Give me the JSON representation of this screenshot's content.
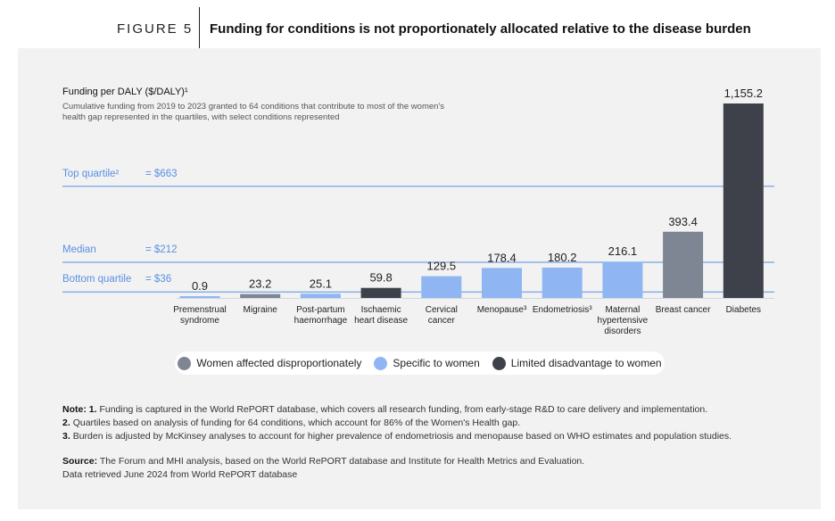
{
  "header": {
    "figure_label": "FIGURE 5",
    "title": "Funding for conditions is not proportionately allocated relative to the disease burden"
  },
  "chart_data": {
    "type": "bar",
    "title": "Funding per DALY ($/DALY)¹",
    "subtitle": "Cumulative funding from 2019 to 2023 granted to 64 conditions that contribute to most of the women's health gap represented in the quartiles, with select conditions represented",
    "categories": [
      "Premenstrual syndrome",
      "Migraine",
      "Post-partum haemorrhage",
      "Ischaemic heart disease",
      "Cervical cancer",
      "Menopause³",
      "Endometriosis³",
      "Maternal hypertensive disorders",
      "Breast cancer",
      "Diabetes"
    ],
    "category_lines": [
      [
        "Premenstrual",
        "syndrome"
      ],
      [
        "Migraine"
      ],
      [
        "Post-partum",
        "haemorrhage"
      ],
      [
        "Ischaemic",
        "heart disease"
      ],
      [
        "Cervical",
        "cancer"
      ],
      [
        "Menopause³"
      ],
      [
        "Endometriosis³"
      ],
      [
        "Maternal",
        "hypertensive",
        "disorders"
      ],
      [
        "Breast cancer"
      ],
      [
        "Diabetes"
      ]
    ],
    "values": [
      0.9,
      23.2,
      25.1,
      59.8,
      129.5,
      178.4,
      180.2,
      216.1,
      393.4,
      1155.2
    ],
    "value_labels": [
      "0.9",
      "23.2",
      "25.1",
      "59.8",
      "129.5",
      "178.4",
      "180.2",
      "216.1",
      "393.4",
      "1,155.2"
    ],
    "groups": [
      "specific",
      "disproportionate",
      "specific",
      "limited",
      "specific",
      "specific",
      "specific",
      "specific",
      "disproportionate",
      "limited"
    ],
    "ylim": [
      0,
      1155.2
    ],
    "reference_lines": [
      {
        "label": "Top quartile²",
        "value_label": "= $663",
        "value": 663
      },
      {
        "label": "Median",
        "value_label": "= $212",
        "value": 212
      },
      {
        "label": "Bottom quartile",
        "value_label": "= $36",
        "value": 36
      }
    ],
    "legend": [
      {
        "key": "disproportionate",
        "label": "Women affected disproportionately",
        "color": "#7e8693"
      },
      {
        "key": "specific",
        "label": "Specific to women",
        "color": "#8fb6f3"
      },
      {
        "key": "limited",
        "label": "Limited disadvantage to women",
        "color": "#3f414a"
      }
    ],
    "reference_line_color": "#5a8fe3",
    "legend_position": "bottom"
  },
  "notes": {
    "heading": "Note:",
    "items": [
      {
        "num": "1.",
        "text": "Funding is captured in the World RePORT database, which covers all research funding, from early-stage R&D to care delivery and implementation."
      },
      {
        "num": "2.",
        "text": "Quartiles based on analysis of funding for 64 conditions, which account for 86% of the Women's Health gap."
      },
      {
        "num": "3.",
        "text": "Burden is adjusted by McKinsey analyses to account for higher prevalence of endometriosis and menopause based on WHO estimates and population studies."
      }
    ]
  },
  "source": {
    "heading": "Source:",
    "text": "The Forum and MHI analysis, based on the World RePORT database and Institute for Health Metrics and Evaluation.",
    "retrieved": "Data retrieved June 2024 from World RePORT database"
  }
}
